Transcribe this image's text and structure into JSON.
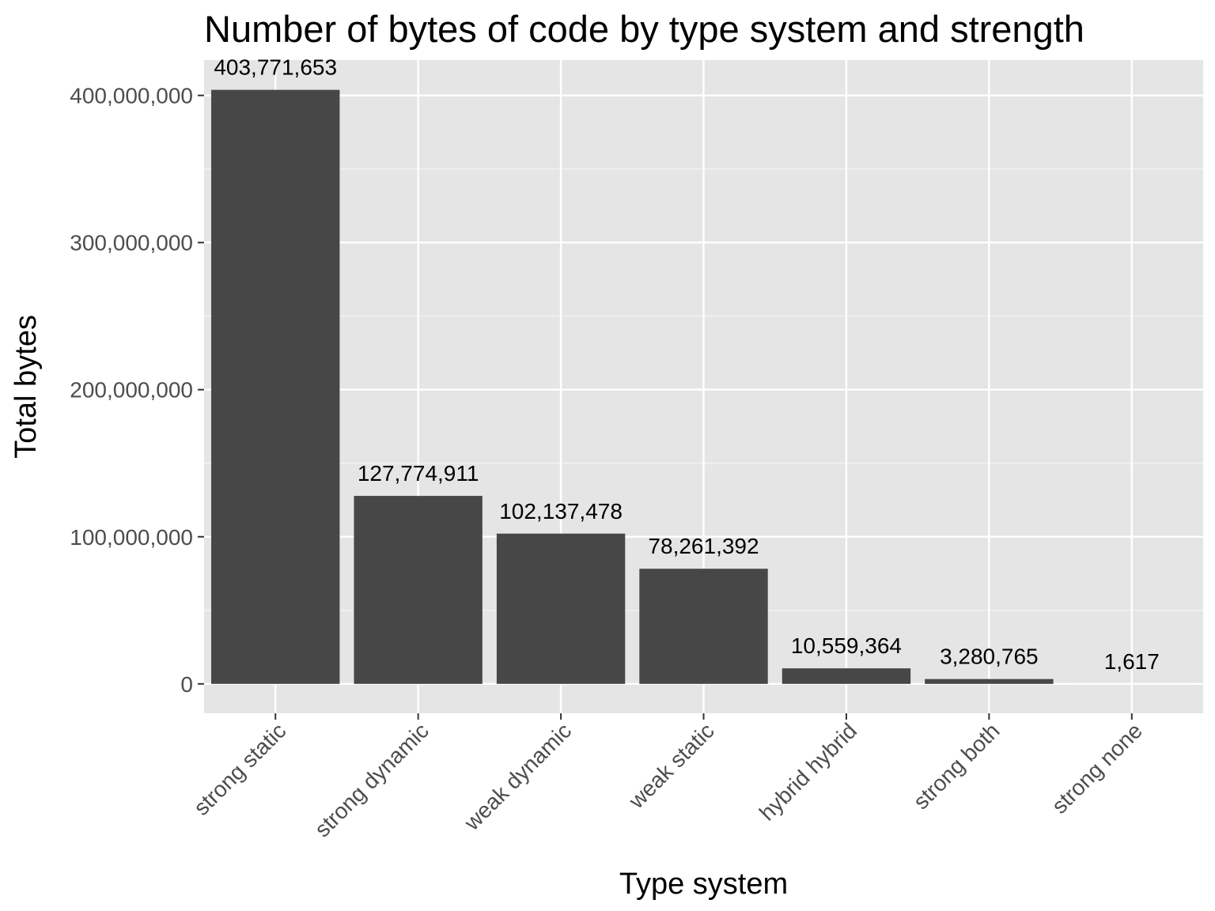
{
  "chart_data": {
    "type": "bar",
    "title": "Number of bytes of code by type system and strength",
    "xlabel": "Type system",
    "ylabel": "Total bytes",
    "categories": [
      "strong static",
      "strong dynamic",
      "weak dynamic",
      "weak static",
      "hybrid hybrid",
      "strong both",
      "strong none"
    ],
    "values": [
      403771653,
      127774911,
      102137478,
      78261392,
      10559364,
      3280765,
      1617
    ],
    "data_labels": [
      "403,771,653",
      "127,774,911",
      "102,137,478",
      "78,261,392",
      "10,559,364",
      "3,280,765",
      "1,617"
    ],
    "y_ticks": [
      0,
      100000000,
      200000000,
      300000000,
      400000000
    ],
    "y_tick_labels": [
      "0",
      "100,000,000",
      "200,000,000",
      "300,000,000",
      "400,000,000"
    ],
    "ylim": [
      -20000000,
      424000000
    ],
    "grid": true,
    "colors": {
      "bar": "#474747",
      "panel": "#e5e5e5",
      "grid_major": "#ffffff",
      "grid_minor": "#f2f2f2",
      "tick": "#333333"
    }
  }
}
